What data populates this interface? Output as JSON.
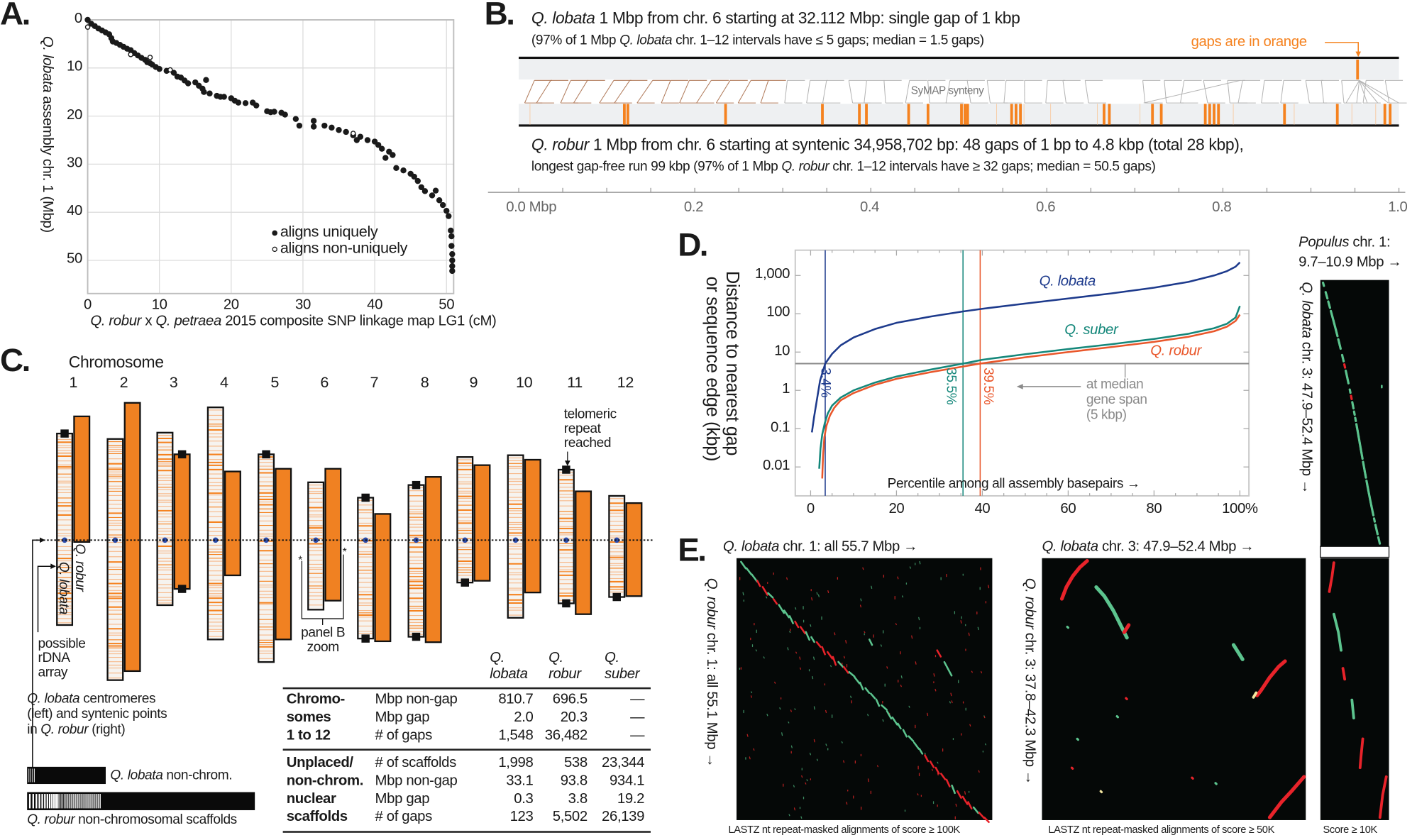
{
  "panel_labels": {
    "a": "A.",
    "b": "B.",
    "c": "C.",
    "d": "D.",
    "e": "E."
  },
  "chart_data": [
    {
      "type": "scatter",
      "xlabel": [
        "Q. robur",
        " x ",
        "Q. petraea",
        " 2015 composite SNP linkage map LG1  (cM)"
      ],
      "ylabel": [
        "Q. lobata",
        " assembly chr. 1  (Mbp)"
      ],
      "xlim": [
        0,
        51
      ],
      "ylim": [
        0,
        56.9
      ],
      "y_inverted": true,
      "grid": true,
      "xticks": [
        "0",
        "10",
        "20",
        "30",
        "40",
        "50"
      ],
      "xtick_values": [
        0,
        10,
        20,
        30,
        40,
        50
      ],
      "yticks": [
        "0",
        "10",
        "20",
        "30",
        "40",
        "50"
      ],
      "ytick_values": [
        0,
        10,
        20,
        30,
        40,
        50
      ],
      "legend_position": "bottom-right",
      "series": [
        {
          "name": "aligns uniquely",
          "marker": "filled",
          "x": [
            0,
            0.5,
            1,
            1.5,
            2,
            2.5,
            3,
            3.3,
            3.5,
            4,
            4.5,
            5,
            5.5,
            6,
            6.5,
            7,
            7.5,
            8,
            8.3,
            8.7,
            9,
            9.5,
            10,
            11,
            12,
            12.5,
            13,
            13.5,
            14,
            15,
            15.5,
            16,
            16.2,
            16.5,
            17,
            18,
            18.5,
            19,
            20,
            20.5,
            21,
            22,
            23,
            23.5,
            25,
            25.5,
            26,
            27,
            27.5,
            29,
            29.5,
            31.5,
            31.5,
            33,
            34,
            35,
            36,
            37,
            37.5,
            38,
            39,
            40,
            40.5,
            41,
            41.5,
            42,
            42.5,
            43,
            44,
            45,
            45.5,
            46,
            46.5,
            47,
            48,
            48.5,
            49,
            49.5,
            50,
            50.3,
            50.6,
            50.7,
            50.7,
            50.8,
            50.8,
            50.8,
            50.8
          ],
          "y": [
            0,
            0.8,
            1.3,
            1.8,
            2.2,
            2.6,
            3,
            3.8,
            4.5,
            4.8,
            5.2,
            5.6,
            6,
            6.3,
            6.9,
            7.4,
            7.9,
            8.3,
            8.8,
            9,
            9.3,
            9.8,
            10.2,
            10.6,
            11,
            11.8,
            12,
            12.6,
            13.2,
            13,
            13.7,
            14.3,
            15,
            12.5,
            15.3,
            15.8,
            16,
            16,
            16.3,
            16.8,
            17.2,
            17.3,
            17.2,
            17.8,
            19,
            19.2,
            19.1,
            19.3,
            19.7,
            20.6,
            22,
            21,
            22.2,
            22,
            22.4,
            22.9,
            23.3,
            24,
            25,
            24.3,
            25,
            25.3,
            26,
            26.8,
            28.7,
            27.4,
            28.1,
            30.8,
            31.3,
            32,
            32.6,
            33.5,
            34.8,
            35.6,
            36.5,
            35.5,
            37.5,
            38.5,
            39.7,
            40.8,
            43.8,
            45,
            47,
            48.7,
            50,
            51.2,
            52.2
          ]
        },
        {
          "name": "aligns non-uniquely",
          "marker": "open",
          "x": [
            0,
            6,
            8.7,
            11.5,
            37
          ],
          "y": [
            1.5,
            7.2,
            7.8,
            10.4,
            23.6
          ]
        }
      ]
    },
    {
      "type": "line",
      "ylabel": [
        "Distance to nearest gap",
        "or sequence edge  (kbp)"
      ],
      "xlabel": "Percentile among all assembly basepairs →",
      "yscale": "log",
      "xlim": [
        -3,
        103
      ],
      "ylim": [
        0.0018,
        4600
      ],
      "xticks": [
        "0",
        "20",
        "40",
        "60",
        "80",
        "100%"
      ],
      "xtick_values": [
        0,
        20,
        40,
        60,
        80,
        100
      ],
      "yticks": [
        "1,000",
        "100",
        "10",
        "1",
        "0.1",
        "0.01"
      ],
      "ytick_values": [
        1000,
        100,
        10,
        1,
        0.1,
        0.01
      ],
      "series": [
        {
          "name": "Q. lobata",
          "color": "#1d3a8c",
          "x": [
            0.3,
            0.8,
            1.5,
            2.2,
            3.4,
            5,
            7,
            10,
            15,
            20,
            28,
            35.5,
            40,
            50,
            60,
            70,
            80,
            88,
            94,
            97,
            99,
            100
          ],
          "y": [
            0.08,
            0.2,
            0.6,
            1.8,
            5,
            9,
            15,
            24,
            40,
            58,
            85,
            115,
            135,
            185,
            250,
            340,
            480,
            680,
            1000,
            1300,
            1700,
            2200
          ]
        },
        {
          "name": "Q. suber",
          "color": "#14877a",
          "x": [
            2,
            2.3,
            2.7,
            3.3,
            4,
            5,
            7,
            10,
            15,
            20,
            28,
            35.5,
            40,
            50,
            60,
            70,
            80,
            88,
            94,
            97,
            99,
            100
          ],
          "y": [
            0.009,
            0.03,
            0.07,
            0.14,
            0.25,
            0.4,
            0.65,
            1,
            1.6,
            2.3,
            3.5,
            5,
            6.3,
            8.8,
            12,
            16,
            22,
            30,
            42,
            55,
            80,
            160
          ]
        },
        {
          "name": "Q. robur",
          "color": "#e9562a",
          "x": [
            2.7,
            2.9,
            3.2,
            3.7,
            4.5,
            5.5,
            7,
            10,
            15,
            20,
            28,
            35.5,
            39.5,
            50,
            60,
            70,
            80,
            88,
            94,
            97,
            99,
            100
          ],
          "y": [
            0.005,
            0.02,
            0.06,
            0.12,
            0.22,
            0.35,
            0.55,
            0.85,
            1.4,
            2,
            3,
            4.2,
            5,
            7.3,
            10,
            13.5,
            18.5,
            25,
            35,
            46,
            65,
            95
          ]
        }
      ],
      "reference_line": {
        "y": 5,
        "color": "#8a8a8a",
        "label": [
          "at median",
          "gene span",
          "(5 kbp)"
        ]
      },
      "crossings": [
        {
          "series": "Q. lobata",
          "x": 3.4,
          "label": "3.4%"
        },
        {
          "series": "Q. suber",
          "x": 35.5,
          "label": "35.5%"
        },
        {
          "series": "Q. robur",
          "x": 39.5,
          "label": "39.5%"
        }
      ]
    }
  ],
  "panel_b": {
    "lobata_title": [
      "Q. lobata",
      " 1 Mbp from chr. 6 starting at 32.112 Mbp:  single gap of 1 kbp"
    ],
    "lobata_note": [
      "(97% of 1 Mbp ",
      "Q. lobata",
      " chr. 1–12 intervals have ≤ 5 gaps;  median = 1.5 gaps)"
    ],
    "gaps_note": "gaps are in orange",
    "synteny_label": "SyMAP synteny",
    "robur_title": [
      "Q. robur",
      " 1 Mbp from chr. 6 starting at syntenic 34,958,702 bp:  48 gaps of 1 bp to 4.8 kbp (total 28 kbp),"
    ],
    "robur_note": [
      "longest gap-free run 99 kbp   (97% of 1 Mbp ",
      "Q. robur",
      " chr. 1–12 intervals have ≥ 32 gaps;  median = 50.5 gaps)"
    ],
    "axis_ticks": [
      "0.0 Mbp",
      "0.2",
      "0.4",
      "0.6",
      "0.8",
      "1.0"
    ],
    "axis_tick_values": [
      0,
      0.2,
      0.4,
      0.6,
      0.8,
      1.0
    ],
    "lobata_gaps_mbp": [
      0.953
    ],
    "robur_gaps_mbp": [
      0.12,
      0.124,
      0.235,
      0.345,
      0.387,
      0.395,
      0.443,
      0.465,
      0.503,
      0.507,
      0.51,
      0.56,
      0.565,
      0.57,
      0.665,
      0.671,
      0.72,
      0.73,
      0.78,
      0.785,
      0.79,
      0.795,
      0.87,
      0.93,
      0.984,
      0.99
    ],
    "gap_color": "#f5821f"
  },
  "panel_c": {
    "heading": "Chromosome",
    "numbers": [
      "1",
      "2",
      "3",
      "4",
      "5",
      "6",
      "7",
      "8",
      "9",
      "10",
      "11",
      "12"
    ],
    "telomere_note": [
      "telomeric",
      "repeat",
      "reached"
    ],
    "robur_label": "Q. robur",
    "lobata_label": "Q. lobata",
    "rdna_note": [
      "possible",
      "rDNA",
      "array"
    ],
    "centromere_note_1": [
      "Q. lobata",
      " centromeres"
    ],
    "centromere_note_2": "(left) and syntenic points",
    "centromere_note_3": [
      "in ",
      "Q. robur",
      " (right)"
    ],
    "panelb_note": [
      "panel B",
      "zoom"
    ],
    "asterisk": "*",
    "nonchrom_lobata": [
      "Q. lobata",
      " non-chrom."
    ],
    "nonchrom_robur": [
      "Q. robur",
      " non-chromosomal scaffolds"
    ],
    "gap_color": "#f5821f",
    "centromere_color": "#2b4aa8"
  },
  "table": {
    "headers": [
      [
        "Q.",
        "lobata"
      ],
      [
        "Q.",
        "robur"
      ],
      [
        "Q.",
        "suber"
      ]
    ],
    "groups": [
      {
        "label": [
          "Chromo-",
          "somes",
          "1 to 12"
        ],
        "rows": [
          {
            "metric": "Mbp non-gap",
            "values": [
              "810.7",
              "696.5",
              "—"
            ]
          },
          {
            "metric": "Mbp gap",
            "values": [
              "2.0",
              "20.3",
              "—"
            ]
          },
          {
            "metric": "# of gaps",
            "values": [
              "1,548",
              "36,482",
              "—"
            ]
          }
        ]
      },
      {
        "label": [
          "Unplaced/",
          "non-chrom.",
          "nuclear",
          "scaffolds"
        ],
        "rows": [
          {
            "metric": "# of scaffolds",
            "values": [
              "1,998",
              "538",
              "23,344"
            ]
          },
          {
            "metric": "Mbp non-gap",
            "values": [
              "33.1",
              "93.8",
              "934.1"
            ]
          },
          {
            "metric": "Mbp gap",
            "values": [
              "0.3",
              "3.8",
              "19.2"
            ]
          },
          {
            "metric": "# of gaps",
            "values": [
              "123",
              "5,502",
              "26,139"
            ]
          }
        ]
      }
    ]
  },
  "populus": {
    "title": [
      "Populus",
      " chr. 1:"
    ],
    "subtitle": "9.7–10.9 Mbp →",
    "ylabel": [
      "Q. lobata",
      " chr. 3:  47.9–52.4 Mbp →"
    ]
  },
  "panel_e": {
    "plot1_title": [
      "Q. lobata",
      " chr. 1:  all 55.7 Mbp →"
    ],
    "plot1_ylabel": [
      "Q. robur",
      " chr. 1:  all 55.1 Mbp →"
    ],
    "plot1_caption": "LASTZ nt repeat-masked alignments of score ≥ 100K",
    "plot2_title": [
      "Q. lobata",
      " chr. 3:  47.9–52.4 Mbp →"
    ],
    "plot2_ylabel": [
      "Q. robur",
      " chr. 3:  37.8–42.3 Mbp →"
    ],
    "plot2_caption": "LASTZ nt repeat-masked alignments of score ≥ 50K",
    "plot3_caption": "Score ≥ 10K",
    "colors": {
      "forward": "#5cc48e",
      "reverse": "#e8232a",
      "background": "#050807"
    }
  }
}
